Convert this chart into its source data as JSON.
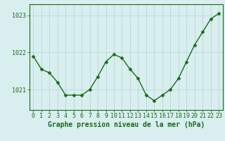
{
  "x": [
    0,
    1,
    2,
    3,
    4,
    5,
    6,
    7,
    8,
    9,
    10,
    11,
    12,
    13,
    14,
    15,
    16,
    17,
    18,
    19,
    20,
    21,
    22,
    23
  ],
  "y": [
    1021.9,
    1021.55,
    1021.45,
    1021.2,
    1020.85,
    1020.85,
    1020.85,
    1021.0,
    1021.35,
    1021.75,
    1021.95,
    1021.85,
    1021.55,
    1021.3,
    1020.85,
    1020.7,
    1020.85,
    1021.0,
    1021.3,
    1021.75,
    1022.2,
    1022.55,
    1022.9,
    1023.05
  ],
  "line_color": "#1a6b1a",
  "marker": "D",
  "marker_size": 2.5,
  "bg_color": "#d9eeee",
  "plot_bg_color": "#d9eeee",
  "grid_color": "#b8d8d8",
  "xlabel": "Graphe pression niveau de la mer (hPa)",
  "xlabel_fontsize": 7,
  "xlabel_color": "#1a6b1a",
  "ylabel_ticks": [
    1021,
    1022,
    1023
  ],
  "ylim": [
    1020.45,
    1023.3
  ],
  "xlim": [
    -0.5,
    23.5
  ],
  "tick_fontsize": 6,
  "tick_color": "#1a6b1a",
  "spine_color": "#1a6b1a",
  "line_width": 1.0
}
